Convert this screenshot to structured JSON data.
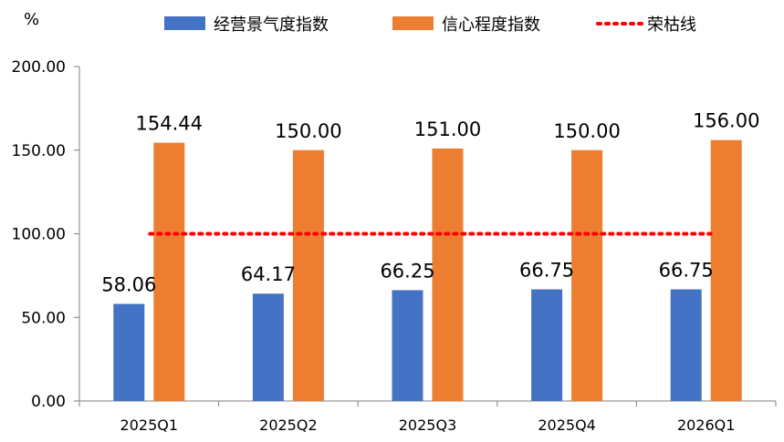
{
  "chart_data": {
    "type": "bar",
    "unit_label": "%",
    "categories": [
      "2025Q1",
      "2025Q2",
      "2025Q3",
      "2025Q4",
      "2026Q1"
    ],
    "series": [
      {
        "name": "经营景气度指数",
        "type": "bar",
        "color": "#4472C4",
        "values": [
          58.06,
          64.17,
          66.25,
          66.75,
          66.75
        ]
      },
      {
        "name": "信心程度指数",
        "type": "bar",
        "color": "#ED7D31",
        "values": [
          154.44,
          150.0,
          151.0,
          150.0,
          156.0
        ]
      },
      {
        "name": "荣枯线",
        "type": "line",
        "style": "dotted",
        "color": "#FF0000",
        "values": [
          100,
          100,
          100,
          100,
          100
        ]
      }
    ],
    "data_labels": {
      "经营景气度指数": [
        "58.06",
        "64.17",
        "66.25",
        "66.75",
        "66.75"
      ],
      "信心程度指数": [
        "154.44",
        "150.00",
        "151.00",
        "150.00",
        "156.00"
      ]
    },
    "yticks": [
      "0.00",
      "50.00",
      "100.00",
      "150.00",
      "200.00"
    ],
    "ylim": [
      0,
      200
    ],
    "legend_position": "top",
    "grid": false
  }
}
